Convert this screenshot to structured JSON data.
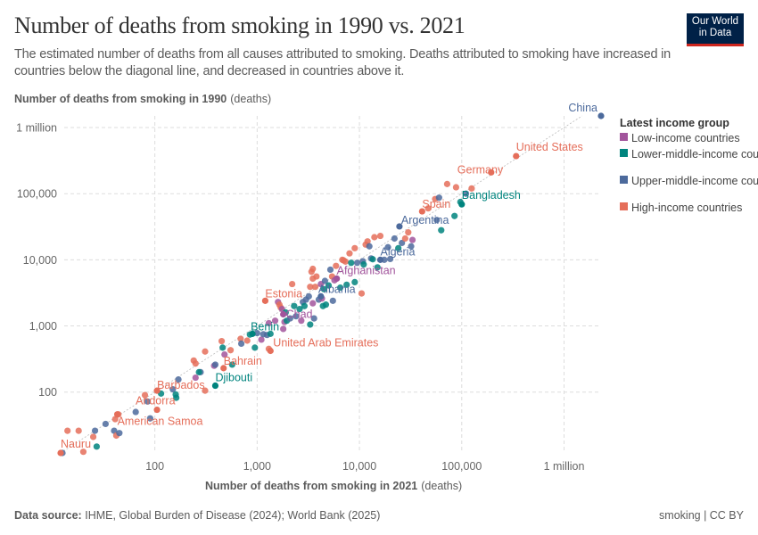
{
  "header": {
    "title": "Number of deaths from smoking in 1990 vs. 2021",
    "subtitle": "The estimated number of deaths from all causes attributed to smoking. Deaths attributed to smoking have increased in countries below the diagonal line, and decreased in countries above it.",
    "logo_text": "Our World in Data"
  },
  "footer": {
    "source_label": "Data source:",
    "source_text": "IHME, Global Burden of Disease (2024); World Bank (2025)",
    "license": "smoking | CC BY"
  },
  "chart_data": {
    "type": "scatter",
    "title": "Number of deaths from smoking in 1990 vs. 2021",
    "xlabel": "Number of deaths from smoking in 2021",
    "xlabel_unit": "(deaths)",
    "ylabel": "Number of deaths from smoking in 1990",
    "ylabel_unit": "(deaths)",
    "xscale": "log",
    "yscale": "log",
    "xlim": [
      12,
      2300000
    ],
    "ylim": [
      12,
      1500000
    ],
    "xticks": [
      {
        "v": 100,
        "label": "100"
      },
      {
        "v": 1000,
        "label": "1,000"
      },
      {
        "v": 10000,
        "label": "10,000"
      },
      {
        "v": 100000,
        "label": "100,000"
      },
      {
        "v": 1000000,
        "label": "1 million"
      }
    ],
    "yticks": [
      {
        "v": 100,
        "label": "100"
      },
      {
        "v": 1000,
        "label": "1,000"
      },
      {
        "v": 10000,
        "label": "10,000"
      },
      {
        "v": 100000,
        "label": "100,000"
      },
      {
        "v": 1000000,
        "label": "1 million"
      }
    ],
    "grid": true,
    "diagonal_line": true,
    "legend": {
      "title": "Latest income group",
      "placement": "right",
      "entries": [
        {
          "key": "L",
          "label": "Low-income countries",
          "color": "#a2559c"
        },
        {
          "key": "LM",
          "label": "Lower-middle-income countries",
          "color": "#00847e"
        },
        {
          "key": "UM",
          "label": "Upper-middle-income countries",
          "color": "#4c6a9c"
        },
        {
          "key": "H",
          "label": "High-income countries",
          "color": "#e56e5a"
        }
      ]
    },
    "labeled_points": [
      {
        "name": "China",
        "x": 2300000,
        "y": 1500000,
        "group": "UM"
      },
      {
        "name": "United States",
        "x": 340000,
        "y": 370000,
        "group": "H"
      },
      {
        "name": "Germany",
        "x": 194000,
        "y": 210000,
        "group": "H"
      },
      {
        "name": "Bangladesh",
        "x": 100000,
        "y": 69000,
        "group": "LM"
      },
      {
        "name": "Spain",
        "x": 41000,
        "y": 54000,
        "group": "H"
      },
      {
        "name": "Argentina",
        "x": 24600,
        "y": 32000,
        "group": "UM"
      },
      {
        "name": "Algeria",
        "x": 16000,
        "y": 10000,
        "group": "UM"
      },
      {
        "name": "Afghanistan",
        "x": 6000,
        "y": 5200,
        "group": "L"
      },
      {
        "name": "Albania",
        "x": 4200,
        "y": 2800,
        "group": "UM"
      },
      {
        "name": "Estonia",
        "x": 1200,
        "y": 2400,
        "group": "H"
      },
      {
        "name": "Chad",
        "x": 1800,
        "y": 1500,
        "group": "L"
      },
      {
        "name": "Benin",
        "x": 900,
        "y": 760,
        "group": "LM"
      },
      {
        "name": "United Arab Emirates",
        "x": 1350,
        "y": 420,
        "group": "H"
      },
      {
        "name": "Bahrain",
        "x": 470,
        "y": 230,
        "group": "H"
      },
      {
        "name": "Djibouti",
        "x": 390,
        "y": 125,
        "group": "LM"
      },
      {
        "name": "Barbados",
        "x": 105,
        "y": 105,
        "group": "H"
      },
      {
        "name": "Andorra",
        "x": 105,
        "y": 54,
        "group": "H"
      },
      {
        "name": "American Samoa",
        "x": 43,
        "y": 46,
        "group": "H"
      },
      {
        "name": "Nauru",
        "x": 12,
        "y": 12,
        "group": "H"
      }
    ],
    "points": [
      [
        12.5,
        12,
        "UM"
      ],
      [
        20,
        12.5,
        "H"
      ],
      [
        18,
        26,
        "H"
      ],
      [
        14,
        26,
        "H"
      ],
      [
        25,
        21,
        "H"
      ],
      [
        26,
        26,
        "UM"
      ],
      [
        27,
        15,
        "LM"
      ],
      [
        33,
        33,
        "UM"
      ],
      [
        40,
        26,
        "UM"
      ],
      [
        42,
        22,
        "H"
      ],
      [
        45,
        24,
        "UM"
      ],
      [
        41,
        39,
        "H"
      ],
      [
        44,
        46,
        "H"
      ],
      [
        65,
        50,
        "UM"
      ],
      [
        80,
        90,
        "H"
      ],
      [
        85,
        72,
        "UM"
      ],
      [
        90,
        40,
        "UM"
      ],
      [
        115,
        95,
        "LM"
      ],
      [
        150,
        110,
        "UM"
      ],
      [
        160,
        92,
        "LM"
      ],
      [
        162,
        82,
        "LM"
      ],
      [
        170,
        155,
        "UM"
      ],
      [
        250,
        165,
        "L"
      ],
      [
        240,
        300,
        "H"
      ],
      [
        250,
        270,
        "H"
      ],
      [
        310,
        105,
        "H"
      ],
      [
        310,
        410,
        "H"
      ],
      [
        280,
        200,
        "UM"
      ],
      [
        270,
        200,
        "LM"
      ],
      [
        380,
        250,
        "L"
      ],
      [
        390,
        260,
        "UM"
      ],
      [
        450,
        590,
        "H"
      ],
      [
        460,
        470,
        "LM"
      ],
      [
        480,
        370,
        "L"
      ],
      [
        550,
        430,
        "H"
      ],
      [
        570,
        260,
        "LM"
      ],
      [
        690,
        640,
        "H"
      ],
      [
        700,
        540,
        "UM"
      ],
      [
        800,
        600,
        "H"
      ],
      [
        850,
        740,
        "LM"
      ],
      [
        950,
        470,
        "LM"
      ],
      [
        1000,
        780,
        "UM"
      ],
      [
        1100,
        620,
        "L"
      ],
      [
        1150,
        750,
        "UM"
      ],
      [
        1250,
        730,
        "UM"
      ],
      [
        1300,
        1100,
        "L"
      ],
      [
        1350,
        760,
        "LM"
      ],
      [
        1300,
        450,
        "H"
      ],
      [
        1500,
        1200,
        "L"
      ],
      [
        1600,
        2300,
        "L"
      ],
      [
        1650,
        2100,
        "H"
      ],
      [
        1700,
        1900,
        "H"
      ],
      [
        1750,
        1800,
        "L"
      ],
      [
        1800,
        900,
        "L"
      ],
      [
        1850,
        1150,
        "L"
      ],
      [
        1900,
        1600,
        "LM"
      ],
      [
        1950,
        1200,
        "LM"
      ],
      [
        2100,
        1300,
        "UM"
      ],
      [
        2200,
        4300,
        "H"
      ],
      [
        2300,
        2000,
        "LM"
      ],
      [
        2400,
        1400,
        "UM"
      ],
      [
        2600,
        1800,
        "LM"
      ],
      [
        2700,
        1200,
        "L"
      ],
      [
        2800,
        2300,
        "UM"
      ],
      [
        2900,
        2000,
        "LM"
      ],
      [
        3000,
        2500,
        "UM"
      ],
      [
        3200,
        2800,
        "UM"
      ],
      [
        3300,
        1050,
        "LM"
      ],
      [
        3300,
        3900,
        "H"
      ],
      [
        3400,
        6600,
        "H"
      ],
      [
        3500,
        5200,
        "H"
      ],
      [
        3500,
        2200,
        "L"
      ],
      [
        3500,
        7300,
        "H"
      ],
      [
        3600,
        1300,
        "UM"
      ],
      [
        3700,
        3900,
        "H"
      ],
      [
        3800,
        5600,
        "H"
      ],
      [
        4000,
        2500,
        "UM"
      ],
      [
        4200,
        4300,
        "L"
      ],
      [
        4300,
        2600,
        "L"
      ],
      [
        4400,
        2000,
        "LM"
      ],
      [
        4500,
        3600,
        "LM"
      ],
      [
        4600,
        4800,
        "UM"
      ],
      [
        4700,
        2100,
        "LM"
      ],
      [
        5000,
        4100,
        "LM"
      ],
      [
        5200,
        7100,
        "UM"
      ],
      [
        5400,
        5600,
        "H"
      ],
      [
        5500,
        2400,
        "UM"
      ],
      [
        5700,
        4900,
        "L"
      ],
      [
        5900,
        8100,
        "H"
      ],
      [
        6500,
        3800,
        "LM"
      ],
      [
        6800,
        10000,
        "H"
      ],
      [
        7000,
        9800,
        "H"
      ],
      [
        7300,
        9400,
        "H"
      ],
      [
        7500,
        4200,
        "LM"
      ],
      [
        8000,
        12500,
        "H"
      ],
      [
        8300,
        9000,
        "LM"
      ],
      [
        9000,
        15000,
        "H"
      ],
      [
        9000,
        4600,
        "LM"
      ],
      [
        9500,
        9000,
        "UM"
      ],
      [
        10500,
        3100,
        "H"
      ],
      [
        10800,
        9500,
        "UM"
      ],
      [
        11000,
        8500,
        "LM"
      ],
      [
        11500,
        17000,
        "H"
      ],
      [
        12000,
        19000,
        "H"
      ],
      [
        12500,
        16000,
        "UM"
      ],
      [
        13000,
        10500,
        "UM"
      ],
      [
        13500,
        10200,
        "LM"
      ],
      [
        14000,
        22000,
        "H"
      ],
      [
        15000,
        7700,
        "LM"
      ],
      [
        16000,
        23000,
        "H"
      ],
      [
        17500,
        10000,
        "UM"
      ],
      [
        19000,
        15500,
        "UM"
      ],
      [
        20000,
        10300,
        "UM"
      ],
      [
        22000,
        21000,
        "UM"
      ],
      [
        24000,
        15000,
        "LM"
      ],
      [
        26000,
        18000,
        "UM"
      ],
      [
        28000,
        21000,
        "H"
      ],
      [
        30000,
        26000,
        "H"
      ],
      [
        32000,
        16000,
        "UM"
      ],
      [
        33000,
        20000,
        "L"
      ],
      [
        47000,
        60000,
        "H"
      ],
      [
        55000,
        83000,
        "H"
      ],
      [
        57000,
        40000,
        "UM"
      ],
      [
        60000,
        87000,
        "UM"
      ],
      [
        63000,
        28000,
        "LM"
      ],
      [
        72000,
        140000,
        "H"
      ],
      [
        85000,
        46000,
        "LM"
      ],
      [
        88000,
        125000,
        "H"
      ],
      [
        97000,
        75000,
        "LM"
      ],
      [
        110000,
        100000,
        "UM"
      ],
      [
        125000,
        120000,
        "H"
      ]
    ]
  }
}
